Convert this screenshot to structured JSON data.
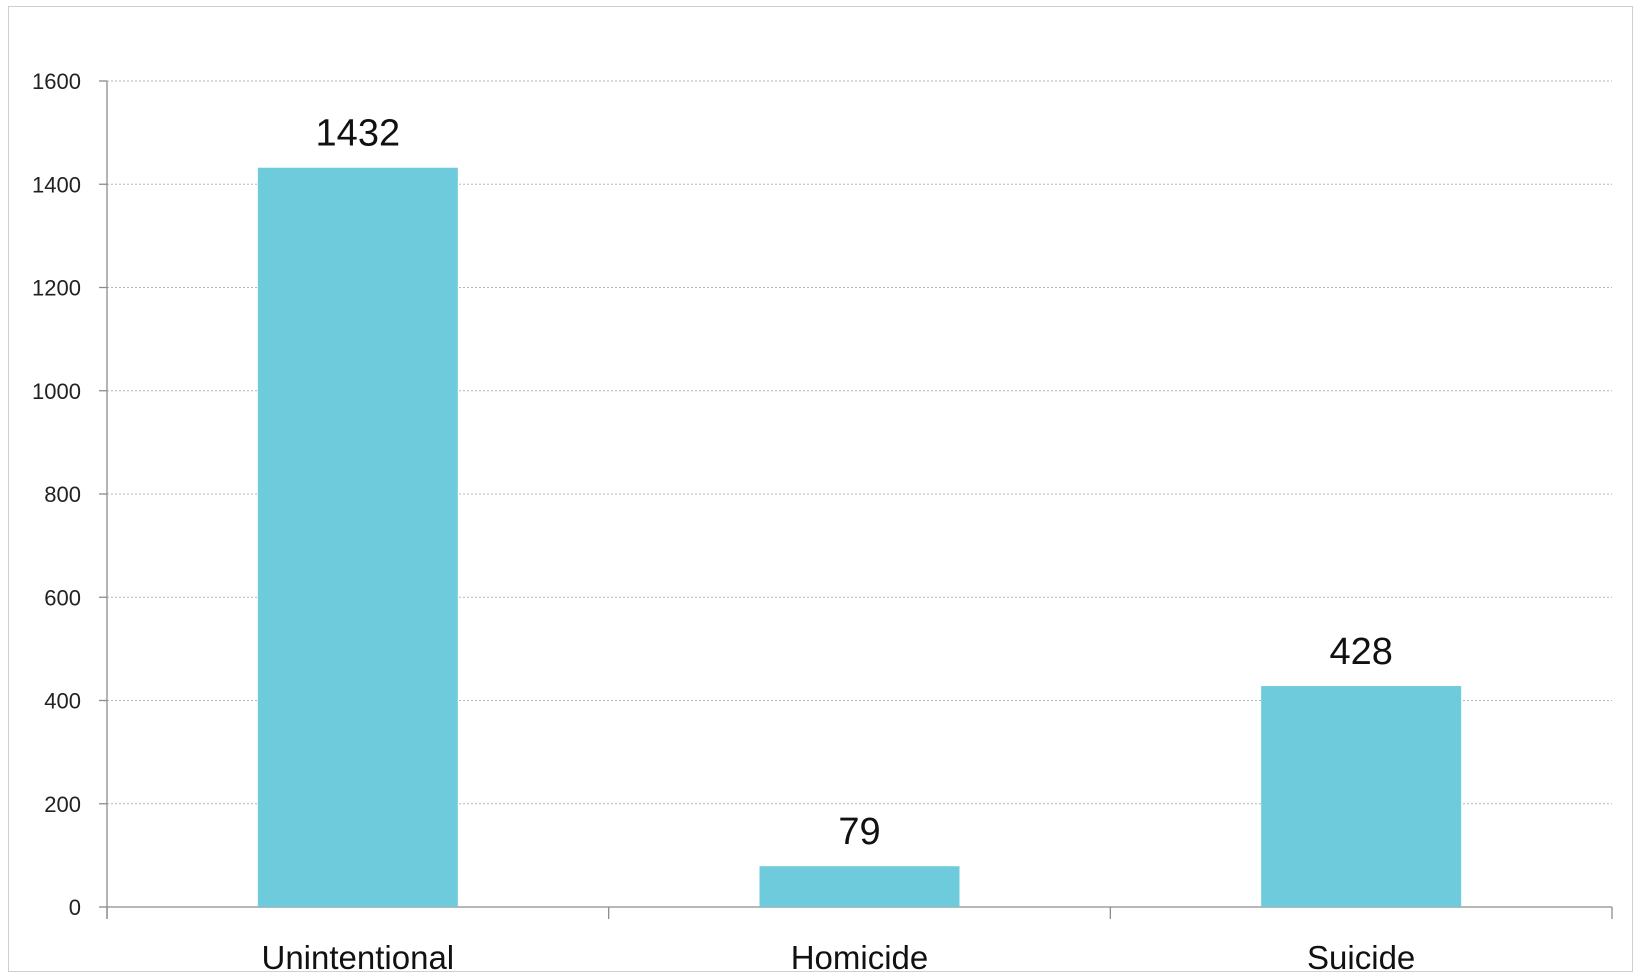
{
  "chart_data": {
    "type": "bar",
    "categories": [
      "Unintentional",
      "Homicide",
      "Suicide"
    ],
    "values": [
      1432,
      79,
      428
    ],
    "data_labels": [
      "1432",
      "79",
      "428"
    ],
    "title": "",
    "xlabel": "",
    "ylabel": "",
    "ylim": [
      0,
      1600
    ],
    "yticks": [
      0,
      200,
      400,
      600,
      800,
      1000,
      1200,
      1400,
      1600
    ],
    "ytick_labels": [
      "0",
      "200",
      "400",
      "600",
      "800",
      "1000",
      "1200",
      "1400",
      "1600"
    ],
    "grid": true,
    "legend": "none",
    "colors": {
      "bar": "#6ECBDC",
      "grid": "#b5b5b5",
      "axis": "#8c8c8c"
    }
  }
}
